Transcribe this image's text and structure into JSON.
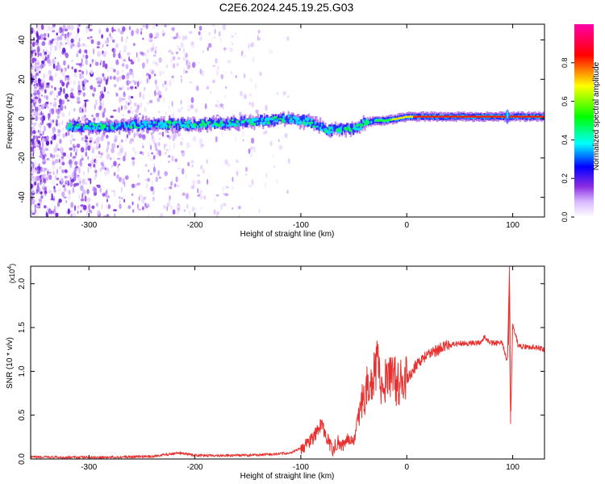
{
  "page": {
    "title": "C2E6.2024.245.19.25.G03"
  },
  "chart_data": [
    {
      "type": "heatmap",
      "title": "C2E6.2024.245.19.25.G03",
      "xlabel": "Height of straight line (km)",
      "ylabel": "Frequency (Hz)",
      "xlim": [
        -355,
        130
      ],
      "ylim": [
        -50,
        48
      ],
      "xticks": [
        -300,
        -200,
        -100,
        0,
        100
      ],
      "yticks": [
        -40,
        -20,
        0,
        20,
        40
      ],
      "colorbar": {
        "label": "Normalized spectral amplitude",
        "range": [
          0,
          1
        ],
        "ticks": [
          0.0,
          0.2,
          0.4,
          0.6,
          0.8
        ],
        "colors": [
          "#ffffff",
          "#d8b8ff",
          "#8a2be2",
          "#0000ff",
          "#00ffff",
          "#00ff00",
          "#ffff00",
          "#ff0000",
          "#ff00aa"
        ]
      },
      "ridge": {
        "x": [
          -320,
          -280,
          -240,
          -200,
          -160,
          -130,
          -110,
          -90,
          -75,
          -60,
          -48,
          -40,
          -30,
          -20,
          -10,
          0,
          20,
          40,
          60,
          80,
          100,
          130
        ],
        "y": [
          -4,
          -4,
          -3,
          -3,
          -2,
          -1,
          0,
          -2,
          -6,
          -5,
          -5,
          -2,
          -1,
          -1,
          0,
          1,
          1,
          1,
          1,
          1,
          1,
          1
        ]
      }
    },
    {
      "type": "line",
      "xlabel": "Height of straight line (km)",
      "ylabel": "SNR (10 * v/v)",
      "yscale_label": "(x10",
      "yscale_exp": "4",
      "yscale_close": ")",
      "xlim": [
        -355,
        130
      ],
      "ylim": [
        0,
        2.2
      ],
      "xticks": [
        -300,
        -200,
        -100,
        0,
        100
      ],
      "yticks": [
        0.0,
        0.5,
        1.0,
        1.5,
        2.0
      ],
      "ytick_labels": [
        "0.0",
        "0.5",
        "1.0",
        "1.5",
        "2.0"
      ],
      "series": [
        {
          "color": "#e8312f",
          "x": [
            -355,
            -320,
            -280,
            -240,
            -215,
            -200,
            -160,
            -130,
            -110,
            -100,
            -90,
            -85,
            -80,
            -77,
            -74,
            -70,
            -65,
            -60,
            -55,
            -50,
            -45,
            -40,
            -35,
            -30,
            -27,
            -25,
            -20,
            -15,
            -10,
            -5,
            0,
            5,
            10,
            20,
            30,
            40,
            50,
            60,
            70,
            73,
            80,
            90,
            95,
            97,
            98,
            100,
            105,
            110,
            120,
            130
          ],
          "y": [
            0.02,
            0.02,
            0.02,
            0.03,
            0.07,
            0.04,
            0.04,
            0.05,
            0.07,
            0.12,
            0.22,
            0.3,
            0.42,
            0.25,
            0.2,
            0.1,
            0.2,
            0.15,
            0.25,
            0.2,
            0.55,
            0.7,
            0.9,
            1.0,
            1.15,
            0.85,
            0.9,
            0.95,
            0.88,
            0.85,
            0.9,
            1.0,
            1.1,
            1.2,
            1.25,
            1.3,
            1.32,
            1.32,
            1.33,
            1.4,
            1.32,
            1.33,
            1.1,
            2.2,
            0.4,
            1.55,
            1.3,
            1.28,
            1.28,
            1.25
          ]
        }
      ]
    }
  ]
}
